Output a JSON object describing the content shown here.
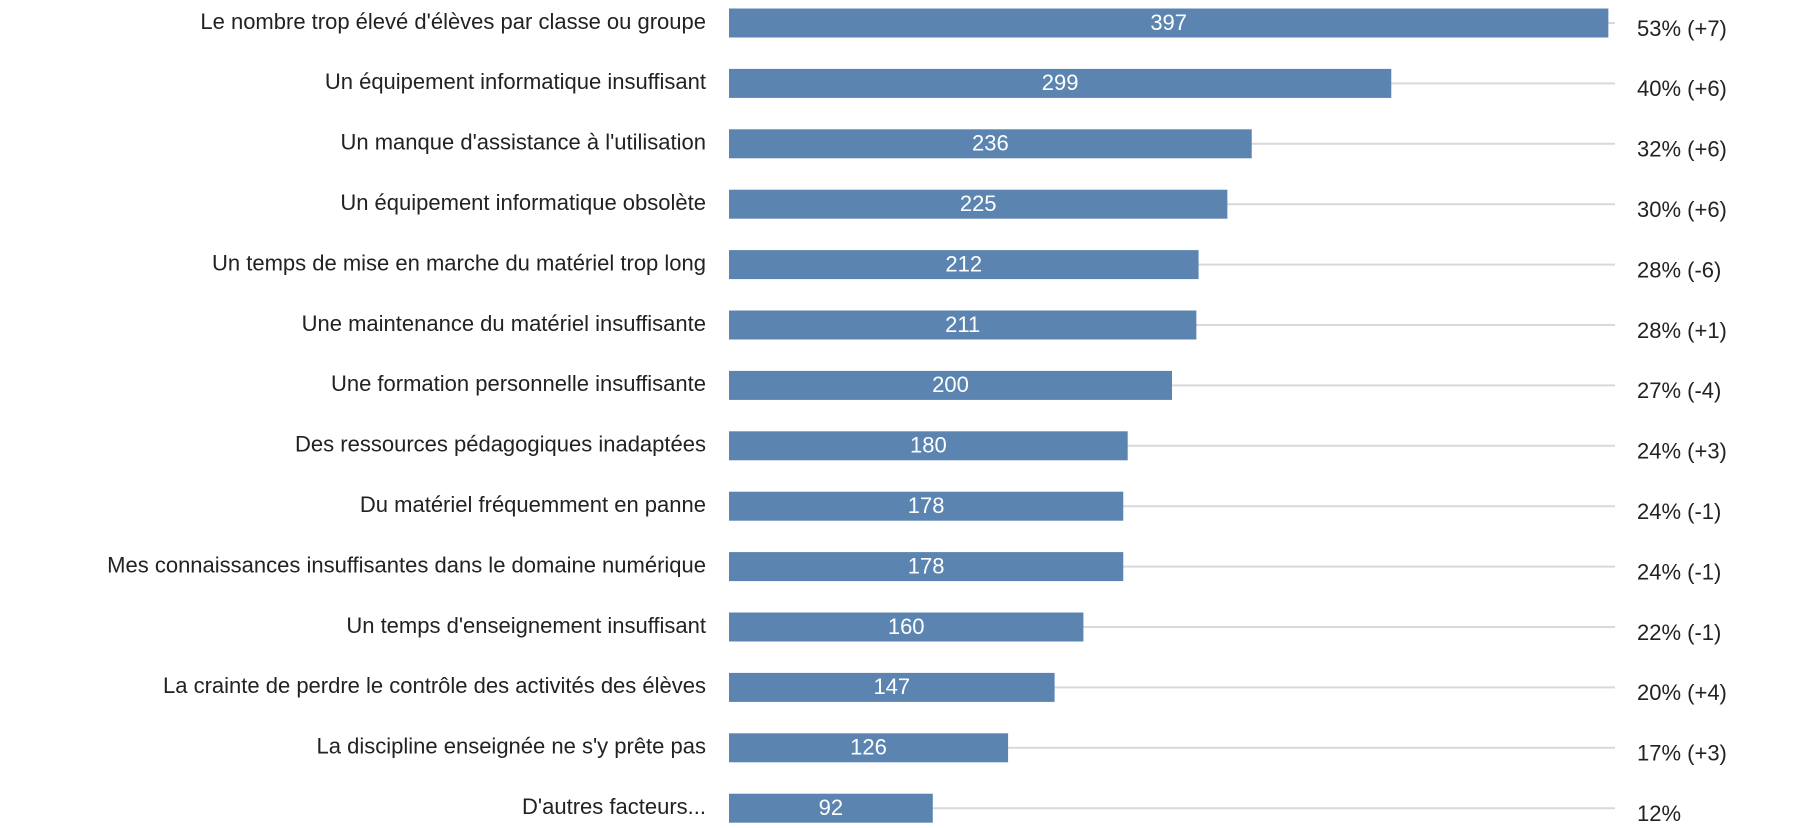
{
  "chart_data": {
    "type": "bar",
    "orientation": "horizontal",
    "categories": [
      "Le nombre trop élevé d'élèves par classe ou groupe",
      "Un équipement informatique insuffisant",
      "Un manque d'assistance à l'utilisation",
      "Un équipement informatique obsolète",
      "Un temps de mise en marche du matériel trop long",
      "Une maintenance du matériel insuffisante",
      "Une formation personnelle insuffisante",
      "Des ressources pédagogiques inadaptées",
      "Du matériel fréquemment en panne",
      "Mes connaissances insuffisantes dans le domaine numérique",
      "Un temps d'enseignement insuffisant",
      "La crainte de perdre le contrôle des activités des élèves",
      "La discipline enseignée ne s'y prête pas",
      "D'autres facteurs..."
    ],
    "values": [
      397,
      299,
      236,
      225,
      212,
      211,
      200,
      180,
      178,
      178,
      160,
      147,
      126,
      92
    ],
    "annotations": [
      "53% (+7)",
      "40% (+6)",
      "32% (+6)",
      "30% (+6)",
      "28% (-6)",
      "28% (+1)",
      "27% (-4)",
      "24% (+3)",
      "24% (-1)",
      "24% (-1)",
      "22% (-1)",
      "20% (+4)",
      "17% (+3)",
      "12%"
    ],
    "color": "#5b84b1",
    "xlim": [
      0,
      400
    ]
  }
}
